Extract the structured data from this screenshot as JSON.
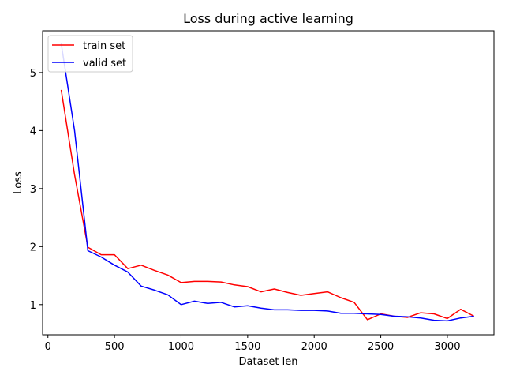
{
  "chart_data": {
    "type": "line",
    "title": "Loss during active learning",
    "xlabel": "Dataset len",
    "ylabel": "Loss",
    "xlim": [
      -40,
      3350
    ],
    "ylim": [
      0.48,
      5.72
    ],
    "xticks": [
      0,
      500,
      1000,
      1500,
      2000,
      2500,
      3000
    ],
    "yticks": [
      1,
      2,
      3,
      4,
      5
    ],
    "grid": false,
    "legend_position": "top-left",
    "x": [
      100,
      200,
      300,
      400,
      500,
      600,
      700,
      800,
      900,
      1000,
      1100,
      1200,
      1300,
      1400,
      1500,
      1600,
      1700,
      1800,
      1900,
      2000,
      2100,
      2200,
      2300,
      2400,
      2500,
      2600,
      2700,
      2800,
      2900,
      3000,
      3100,
      3200
    ],
    "series": [
      {
        "name": "train set",
        "color": "#ff0000",
        "values": [
          4.7,
          3.24,
          1.99,
          1.86,
          1.86,
          1.62,
          1.68,
          1.59,
          1.51,
          1.38,
          1.4,
          1.4,
          1.39,
          1.34,
          1.31,
          1.22,
          1.27,
          1.21,
          1.16,
          1.19,
          1.22,
          1.12,
          1.04,
          0.74,
          0.84,
          0.8,
          0.78,
          0.86,
          0.84,
          0.76,
          0.92,
          0.8
        ]
      },
      {
        "name": "valid set",
        "color": "#0000ff",
        "values": [
          5.5,
          4.0,
          1.93,
          1.82,
          1.68,
          1.56,
          1.32,
          1.25,
          1.17,
          1.0,
          1.06,
          1.02,
          1.04,
          0.96,
          0.98,
          0.94,
          0.91,
          0.91,
          0.9,
          0.9,
          0.89,
          0.85,
          0.85,
          0.84,
          0.83,
          0.8,
          0.79,
          0.77,
          0.73,
          0.72,
          0.77,
          0.8
        ]
      }
    ]
  }
}
